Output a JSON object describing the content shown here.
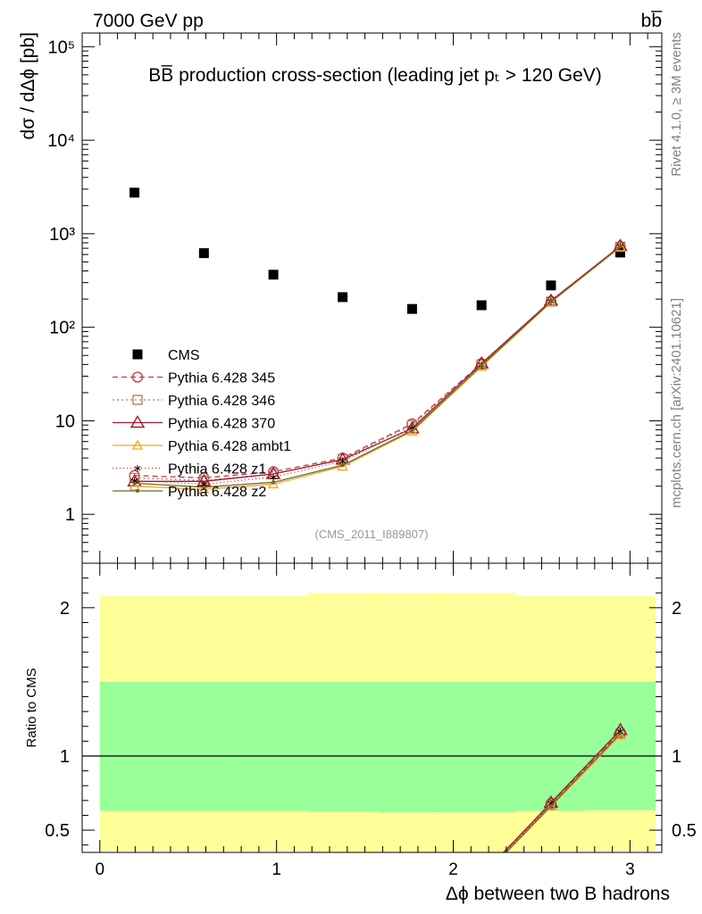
{
  "header": {
    "left": "7000 GeV pp",
    "right": "bb̅"
  },
  "side_labels": {
    "rivet": "Rivet 4.1.0, ≥ 3M events",
    "mcplots": "mcplots.cern.ch [arXiv:2401.10621]"
  },
  "chart_data": [
    {
      "type": "scatter",
      "panel": "main",
      "title": "BB̅ production cross-section (leading jet pₜ > 120 GeV)",
      "analysis_label": "(CMS_2011_I889807)",
      "ylabel": "dσ / dΔϕ [pb]",
      "yscale": "log",
      "xlim": [
        -0.1,
        3.18
      ],
      "ylim": [
        0.3,
        140000
      ],
      "x_ticks": [
        0,
        1,
        2,
        3
      ],
      "y_ticks": [
        {
          "value": 1,
          "label": "1"
        },
        {
          "value": 10,
          "label": "10"
        },
        {
          "value": 100,
          "label": "10²"
        },
        {
          "value": 1000,
          "label": "10³"
        },
        {
          "value": 10000,
          "label": "10⁴"
        },
        {
          "value": 100000,
          "label": "10⁵"
        }
      ],
      "x": [
        0.196,
        0.589,
        0.982,
        1.374,
        1.767,
        2.16,
        2.553,
        2.945
      ],
      "series": [
        {
          "name": "CMS",
          "color": "#000000",
          "marker": "square",
          "dash": "",
          "values": [
            2750,
            620,
            365,
            210,
            157,
            172,
            280,
            630
          ]
        },
        {
          "name": "Pythia 6.428 345",
          "color": "#c0394b",
          "marker": "circle",
          "dash": "6,4",
          "values": [
            2.6,
            2.45,
            2.85,
            4.0,
            9.3,
            41,
            190,
            730
          ]
        },
        {
          "name": "Pythia 6.428 346",
          "color": "#b07a50",
          "marker": "square-open",
          "dash": "2,3",
          "values": [
            2.45,
            2.3,
            2.7,
            3.9,
            9.0,
            40,
            188,
            725
          ]
        },
        {
          "name": "Pythia 6.428 370",
          "color": "#9b1b30",
          "marker": "triangle",
          "dash": "",
          "values": [
            2.25,
            2.25,
            2.7,
            3.85,
            8.3,
            41,
            192,
            740
          ]
        },
        {
          "name": "Pythia 6.428 ambt1",
          "color": "#f5a623",
          "marker": "triangle-small",
          "dash": "",
          "values": [
            2.0,
            1.85,
            2.1,
            3.25,
            7.7,
            38,
            185,
            720
          ]
        },
        {
          "name": "Pythia 6.428 z1",
          "color": "#e02020",
          "marker": "star",
          "dash": "1,3",
          "values": [
            2.3,
            2.1,
            2.5,
            3.7,
            8.5,
            40,
            190,
            735
          ]
        },
        {
          "name": "Pythia 6.428 z2",
          "color": "#6b6b2a",
          "marker": "dot",
          "dash": "",
          "values": [
            2.15,
            1.95,
            2.2,
            3.35,
            7.9,
            39,
            187,
            725
          ]
        }
      ]
    },
    {
      "type": "line",
      "panel": "ratio",
      "ylabel": "Ratio to CMS",
      "xlabel": "Δϕ between two B hadrons",
      "xlim": [
        -0.1,
        3.18
      ],
      "ylim": [
        0.35,
        2.3
      ],
      "x_ticks": [
        0,
        1,
        2,
        3
      ],
      "y_ticks": [
        {
          "value": 0.5,
          "label": "0.5"
        },
        {
          "value": 1,
          "label": "1"
        },
        {
          "value": 2,
          "label": "2"
        }
      ],
      "bands": {
        "bins": [
          0.0,
          0.393,
          0.785,
          1.178,
          1.571,
          1.963,
          2.356,
          2.749,
          3.142
        ],
        "inner_low": [
          0.63,
          0.63,
          0.63,
          0.625,
          0.62,
          0.62,
          0.63,
          0.635
        ],
        "inner_high": [
          1.5,
          1.5,
          1.5,
          1.5,
          1.5,
          1.5,
          1.5,
          1.5
        ],
        "outer_low": [
          0.36,
          0.36,
          0.36,
          0.35,
          0.35,
          0.35,
          0.36,
          0.36
        ],
        "outer_high": [
          2.08,
          2.08,
          2.08,
          2.1,
          2.1,
          2.1,
          2.08,
          2.08
        ],
        "inner_color": "#99ff99",
        "outer_color": "#ffff99"
      },
      "x": [
        2.553,
        2.945
      ],
      "series": [
        {
          "name": "Pythia 6.428 345",
          "values": [
            0.68,
            1.16
          ]
        },
        {
          "name": "Pythia 6.428 346",
          "values": [
            0.67,
            1.15
          ]
        },
        {
          "name": "Pythia 6.428 370",
          "values": [
            0.685,
            1.175
          ]
        },
        {
          "name": "Pythia 6.428 ambt1",
          "values": [
            0.66,
            1.14
          ]
        },
        {
          "name": "Pythia 6.428 z1",
          "values": [
            0.68,
            1.165
          ]
        },
        {
          "name": "Pythia 6.428 z2",
          "values": [
            0.665,
            1.15
          ]
        }
      ]
    }
  ]
}
